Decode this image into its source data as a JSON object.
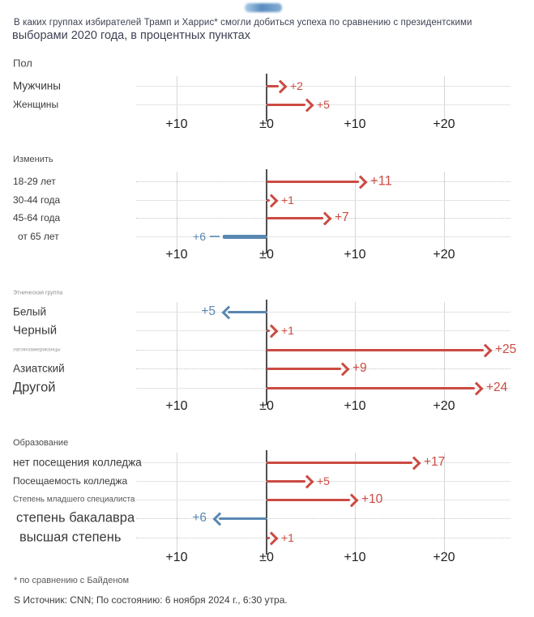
{
  "title": {
    "line1": "В каких группах избирателей Трамп и Харрис* смогли добиться успеха по сравнению с президентскими",
    "line2": "выборами 2020 года, в процентных пунктах"
  },
  "footer": {
    "footnote": "* по сравнению с Байденом",
    "source": "S Источник: CNN; По состоянию: 6 ноября 2024 г., 6:30 утра."
  },
  "colors": {
    "trump_red": "#cb4b42",
    "harris_blue": "#5987b2",
    "axis_dark": "#4f4f4f",
    "grid_light": "#e4e4e4"
  },
  "axis": {
    "tick_labels": [
      "+10",
      "±0",
      "+10",
      "+20"
    ],
    "tick_values": [
      -10,
      0,
      10,
      20
    ]
  },
  "chart_data": {
    "type": "bar",
    "subtype": "diverging-horizontal-arrows",
    "unit": "percentage points vs 2020 presidential election",
    "legend_note": "red arrow right = Trump gain, blue arrow left = Harris gain",
    "xlim": [
      -15,
      27
    ],
    "sections": [
      {
        "header": "Пол",
        "header_size": "ml",
        "rows": [
          {
            "label": "Мужчины",
            "value": 2,
            "direction": "right",
            "display": "+2",
            "color": "red",
            "label_size": "ml",
            "value_size": "md",
            "grid": "solid",
            "head": true,
            "dash": false,
            "indent": 0
          },
          {
            "label": "Женщины",
            "value": 5,
            "direction": "right",
            "display": "+5",
            "color": "red",
            "label_size": "md",
            "value_size": "md",
            "grid": "solid",
            "head": true,
            "dash": false,
            "indent": 0
          }
        ]
      },
      {
        "header": "Изменить",
        "header_size": "sm",
        "rows": [
          {
            "label": "18-29 лет",
            "value": 11,
            "direction": "right",
            "display": "+11",
            "color": "red",
            "label_size": "md",
            "value_size": "xl",
            "grid": "dotted",
            "head": true,
            "dash": false,
            "indent": 0
          },
          {
            "label": "30-44 года",
            "value": 1,
            "direction": "right",
            "display": "+1",
            "color": "red",
            "label_size": "md",
            "value_size": "md",
            "grid": "solid",
            "head": true,
            "dash": false,
            "indent": 0
          },
          {
            "label": "45-64 года",
            "value": 7,
            "direction": "right",
            "display": "+7",
            "color": "red",
            "label_size": "md",
            "value_size": "lg",
            "grid": "dotted",
            "head": true,
            "dash": false,
            "indent": 0
          },
          {
            "label": "от 65 лет",
            "value": 6,
            "direction": "left",
            "display": "+6",
            "color": "blue",
            "label_size": "md",
            "value_size": "md",
            "grid": "solid",
            "head": false,
            "dash": true,
            "indent": 6
          }
        ]
      },
      {
        "header": "Этническая группа",
        "header_size": "xs",
        "rows": [
          {
            "label": "Белый",
            "value": 5,
            "direction": "left",
            "display": "+5",
            "color": "blue",
            "label_size": "ml",
            "value_size": "lg",
            "grid": "solid",
            "head": true,
            "dash": false,
            "indent": 0
          },
          {
            "label": "Черный",
            "value": 1,
            "direction": "right",
            "display": "+1",
            "color": "red",
            "label_size": "lg",
            "value_size": "md",
            "grid": "solid",
            "head": true,
            "dash": false,
            "indent": 0
          },
          {
            "label": "латиноамериканцы",
            "value": 25,
            "direction": "right",
            "display": "+25",
            "color": "red",
            "label_size": "xs",
            "value_size": "lg",
            "grid": "dotted",
            "head": true,
            "dash": false,
            "indent": 0
          },
          {
            "label": "Азиатский",
            "value": 9,
            "direction": "right",
            "display": "+9",
            "color": "red",
            "label_size": "ml",
            "value_size": "lg",
            "grid": "dotted",
            "head": true,
            "dash": false,
            "indent": 0
          },
          {
            "label": "Другой",
            "value": 24,
            "direction": "right",
            "display": "+24",
            "color": "red",
            "label_size": "xl",
            "value_size": "lg",
            "grid": "solid",
            "head": true,
            "dash": false,
            "indent": 0
          }
        ]
      },
      {
        "header": "Образование",
        "header_size": "sm",
        "rows": [
          {
            "label": "нет посещения колледжа",
            "value": 17,
            "direction": "right",
            "display": "+17",
            "color": "red",
            "label_size": "ml",
            "value_size": "lg",
            "grid": "solid",
            "head": true,
            "dash": false,
            "indent": 0
          },
          {
            "label": "Посещаемость колледжа",
            "value": 5,
            "direction": "right",
            "display": "+5",
            "color": "red",
            "label_size": "md",
            "value_size": "md",
            "grid": "solid",
            "head": true,
            "dash": false,
            "indent": 0
          },
          {
            "label": "Степень младшего специалиста",
            "value": 10,
            "direction": "right",
            "display": "+10",
            "color": "red",
            "label_size": "sm",
            "value_size": "lg",
            "grid": "solid",
            "head": true,
            "dash": false,
            "indent": 0
          },
          {
            "label": "степень бакалавра",
            "value": 6,
            "direction": "left",
            "display": "+6",
            "color": "blue",
            "label_size": "xl",
            "value_size": "lg",
            "grid": "dotted",
            "head": true,
            "dash": false,
            "indent": 4
          },
          {
            "label": "высшая степень",
            "value": 1,
            "direction": "right",
            "display": "+1",
            "color": "red",
            "label_size": "xl",
            "value_size": "md",
            "grid": "dotted",
            "head": true,
            "dash": false,
            "indent": 8
          }
        ]
      }
    ]
  }
}
